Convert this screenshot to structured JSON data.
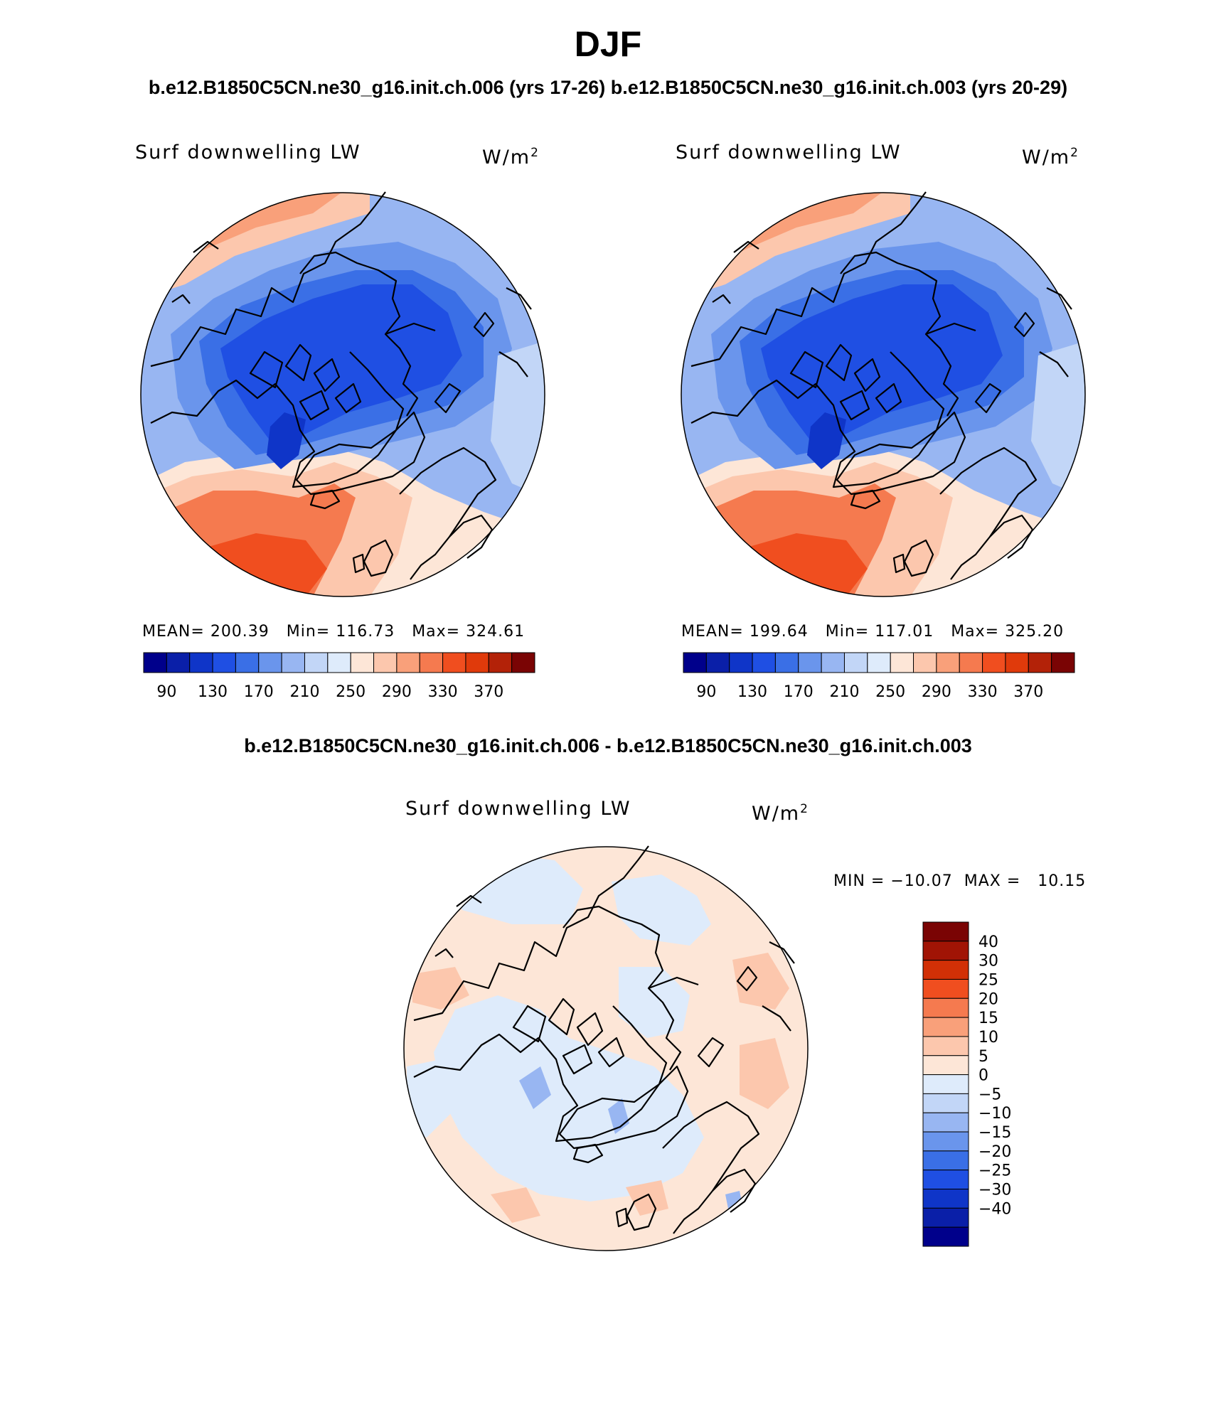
{
  "figure": {
    "main_title": "DJF",
    "case_titles": "b.e12.B1850C5CN.ne30_g16.init.ch.006 (yrs 17-26) b.e12.B1850C5CN.ne30_g16.init.ch.003 (yrs 20-29)",
    "diff_title": "b.e12.B1850C5CN.ne30_g16.init.ch.006 - b.e12.B1850C5CN.ne30_g16.init.ch.003"
  },
  "panels": [
    {
      "variable": "Surf downwelling LW",
      "units": "W/m",
      "units_sup": "2",
      "stats": "MEAN= 200.39   Min= 116.73   Max= 324.61"
    },
    {
      "variable": "Surf downwelling LW",
      "units": "W/m",
      "units_sup": "2",
      "stats": "MEAN= 199.64   Min= 117.01   Max= 325.20"
    },
    {
      "variable": "Surf downwelling LW",
      "units": "W/m",
      "units_sup": "2",
      "stats": "MIN = −10.07  MAX =   10.15"
    }
  ],
  "colorbars": {
    "abs": {
      "colors": [
        "#00008b",
        "#0a1fa8",
        "#0f35c8",
        "#1f4fe3",
        "#3a6fe6",
        "#6a95ec",
        "#98b6f2",
        "#c2d6f7",
        "#deebfb",
        "#fde6d7",
        "#fcc7ad",
        "#f9a07a",
        "#f57a4f",
        "#f04e1f",
        "#e03a0b",
        "#b32208",
        "#7a0404"
      ],
      "tick_labels": [
        "90",
        "130",
        "170",
        "210",
        "250",
        "290",
        "330",
        "370"
      ]
    },
    "diff": {
      "colors_top_to_bottom": [
        "#7a0404",
        "#a11405",
        "#d23006",
        "#f04e1f",
        "#f57a4f",
        "#f9a07a",
        "#fcc7ad",
        "#fde6d7",
        "#deebfb",
        "#c2d6f7",
        "#98b6f2",
        "#6a95ec",
        "#3a6fe6",
        "#1f4fe3",
        "#0f35c8",
        "#0a1fa8",
        "#00008b"
      ],
      "tick_labels": [
        "40",
        "30",
        "25",
        "20",
        "15",
        "10",
        "5",
        "0",
        "−5",
        "−10",
        "−15",
        "−20",
        "−25",
        "−30",
        "−40"
      ]
    }
  },
  "icons": {
    "coastline": "coastline-icon"
  }
}
